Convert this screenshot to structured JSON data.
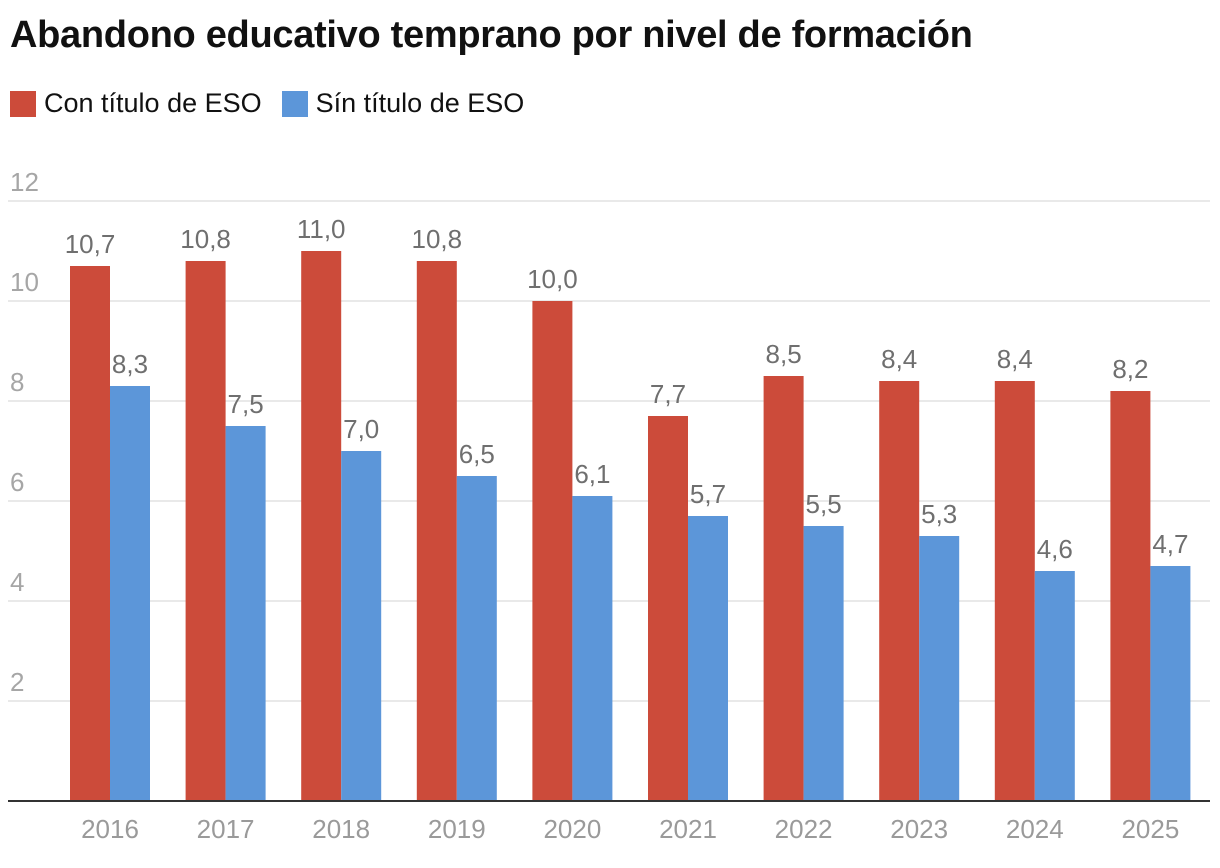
{
  "title": "Abandono educativo temprano por nivel de formación",
  "colors": {
    "con": "#cc4b3a",
    "sin": "#5c96d9",
    "grid": "#e2e2e2",
    "axis": "#333333"
  },
  "chart_data": {
    "type": "bar",
    "title": "Abandono educativo temprano por nivel de formación",
    "xlabel": "",
    "ylabel": "",
    "categories": [
      "2016",
      "2017",
      "2018",
      "2019",
      "2020",
      "2021",
      "2022",
      "2023",
      "2024",
      "2025"
    ],
    "series": [
      {
        "name": "Con título de ESO",
        "color": "#cc4b3a",
        "values": [
          10.7,
          10.8,
          11.0,
          10.8,
          10.0,
          7.7,
          8.5,
          8.4,
          8.4,
          8.2
        ],
        "labels": [
          "10,7",
          "10,8",
          "11,0",
          "10,8",
          "10,0",
          "7,7",
          "8,5",
          "8,4",
          "8,4",
          "8,2"
        ]
      },
      {
        "name": "Sín título de ESO",
        "color": "#5c96d9",
        "values": [
          8.3,
          7.5,
          7.0,
          6.5,
          6.1,
          5.7,
          5.5,
          5.3,
          4.6,
          4.7
        ],
        "labels": [
          "8,3",
          "7,5",
          "7,0",
          "6,5",
          "6,1",
          "5,7",
          "5,5",
          "5,3",
          "4,6",
          "4,7"
        ]
      }
    ],
    "ylim": [
      0,
      12
    ],
    "yticks": [
      2,
      4,
      6,
      8,
      10,
      12
    ],
    "grid": true,
    "legend": "top-left"
  }
}
